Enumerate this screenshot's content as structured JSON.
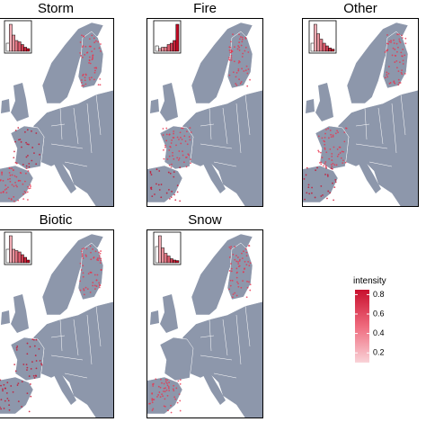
{
  "panels": [
    {
      "title": "Storm",
      "histogram": [
        0.3,
        1,
        0.6,
        0.4,
        0.35,
        0.25,
        0.15,
        0.1
      ]
    },
    {
      "title": "Fire",
      "histogram": [
        0.2,
        0.1,
        0.15,
        0.15,
        0.25,
        0.3,
        0.4,
        1
      ]
    },
    {
      "title": "Other",
      "histogram": [
        0.3,
        1,
        0.65,
        0.45,
        0.3,
        0.2,
        0.12,
        0.08
      ]
    },
    {
      "title": "Biotic",
      "histogram": [
        0.5,
        1,
        0.5,
        0.45,
        0.4,
        0.3,
        0.2,
        0.1
      ]
    },
    {
      "title": "Snow",
      "histogram": [
        0.6,
        1,
        0.55,
        0.35,
        0.25,
        0.15,
        0.1,
        0.08
      ]
    }
  ],
  "legend": {
    "title": "intensity",
    "ticks": [
      0.8,
      0.6,
      0.4,
      0.2
    ],
    "range": [
      0.1,
      0.85
    ]
  }
}
